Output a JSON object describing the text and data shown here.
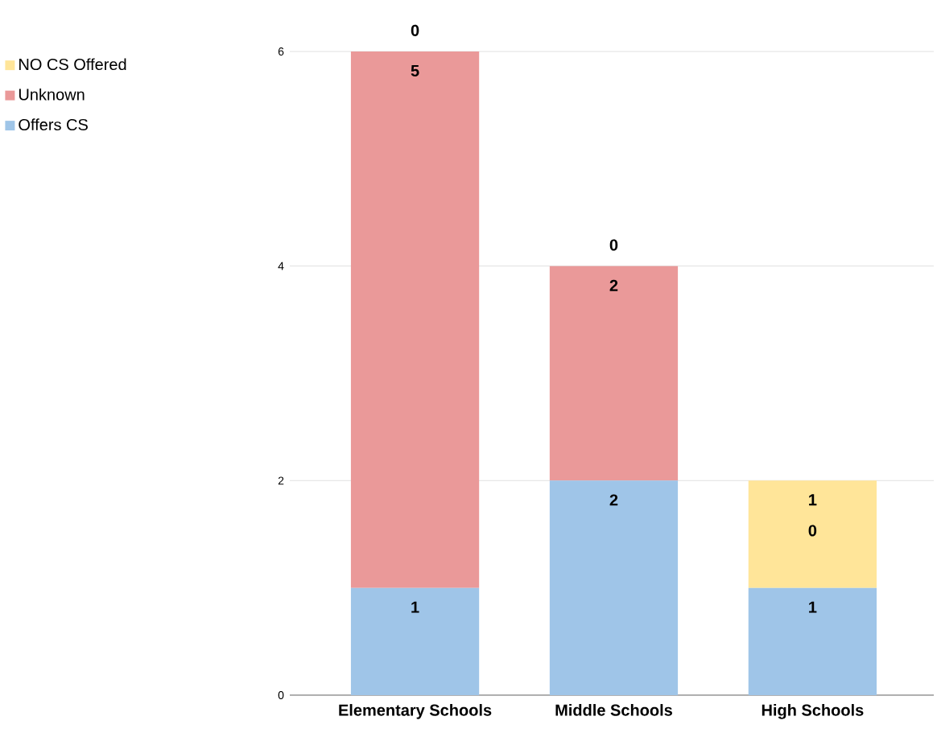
{
  "chart_data": {
    "type": "bar",
    "stacked": true,
    "categories": [
      "Elementary Schools",
      "Middle Schools",
      "High Schools"
    ],
    "series": [
      {
        "name": "Offers CS",
        "color": "#9fc5e8",
        "values": [
          1,
          2,
          1
        ]
      },
      {
        "name": "Unknown",
        "color": "#ea9999",
        "values": [
          5,
          2,
          0
        ]
      },
      {
        "name": "NO CS Offered",
        "color": "#ffe599",
        "values": [
          0,
          0,
          1
        ]
      }
    ],
    "ylim": [
      0,
      6
    ],
    "yticks": [
      0,
      2,
      4,
      6
    ],
    "grid": "y",
    "legend": "top left",
    "data_labels": true
  }
}
